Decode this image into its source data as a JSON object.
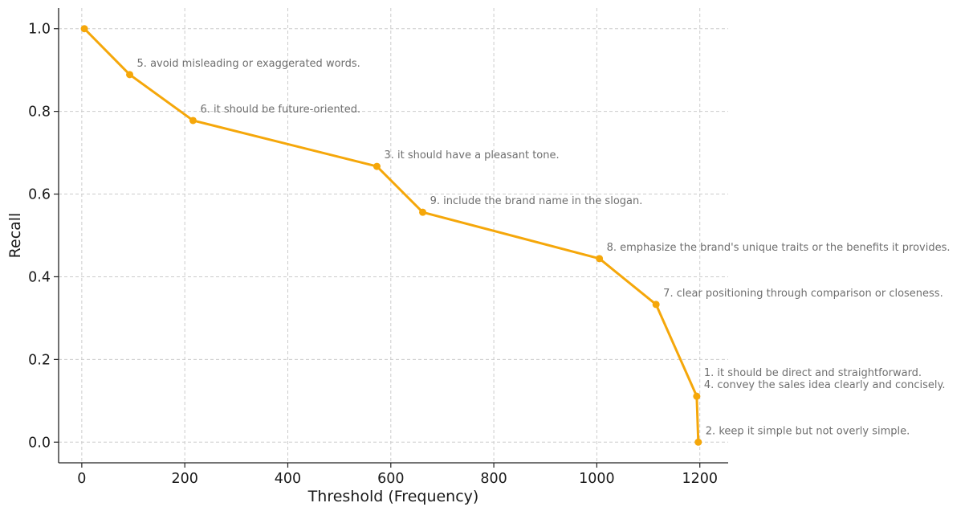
{
  "chart_data": {
    "type": "line",
    "xlabel": "Threshold (Frequency)",
    "ylabel": "Recall",
    "xlim": [
      -45,
      1255
    ],
    "ylim": [
      -0.05,
      1.05
    ],
    "xticks": [
      0,
      200,
      400,
      600,
      800,
      1000,
      1200
    ],
    "xtick_labels": [
      "0",
      "200",
      "400",
      "600",
      "800",
      "1000",
      "1200"
    ],
    "yticks": [
      0.0,
      0.2,
      0.4,
      0.6,
      0.8,
      1.0
    ],
    "ytick_labels": [
      "0.0",
      "0.2",
      "0.4",
      "0.6",
      "0.8",
      "1.0"
    ],
    "grid": true,
    "color": "#f5a70a",
    "series": [
      {
        "x": [
          5,
          93,
          216,
          573,
          662,
          1005,
          1115,
          1194,
          1197
        ],
        "y": [
          1.0,
          0.889,
          0.778,
          0.667,
          0.556,
          0.444,
          0.333,
          0.111,
          0.0
        ]
      }
    ],
    "annotations": [
      {
        "x": 93,
        "y": 0.889,
        "lines": [
          "5. avoid misleading or exaggerated words."
        ]
      },
      {
        "x": 216,
        "y": 0.778,
        "lines": [
          "6. it should be future-oriented."
        ]
      },
      {
        "x": 573,
        "y": 0.667,
        "lines": [
          "3. it should have a pleasant tone."
        ]
      },
      {
        "x": 662,
        "y": 0.556,
        "lines": [
          "9. include the brand name in the slogan."
        ]
      },
      {
        "x": 1005,
        "y": 0.444,
        "lines": [
          "8. emphasize the brand's unique traits or the benefits it provides."
        ]
      },
      {
        "x": 1115,
        "y": 0.333,
        "lines": [
          "7. clear positioning through comparison or closeness."
        ]
      },
      {
        "x": 1194,
        "y": 0.111,
        "lines": [
          "1. it should be direct and straightforward.",
          "4. convey the sales idea clearly and concisely."
        ]
      },
      {
        "x": 1197,
        "y": 0.0,
        "lines": [
          "2. keep it simple but not overly simple."
        ]
      }
    ]
  }
}
